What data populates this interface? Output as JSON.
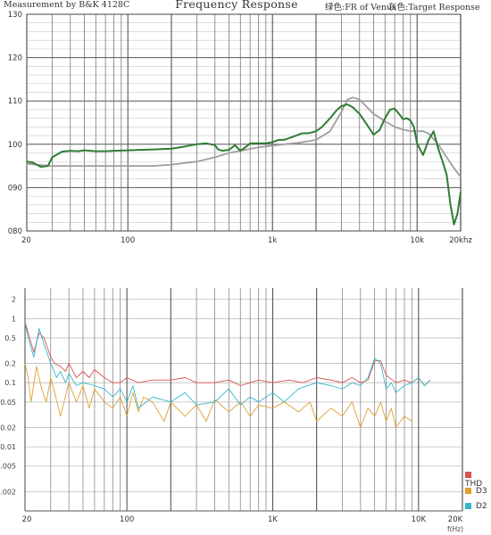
{
  "header": {
    "left": "Measurement by B&K 4128C",
    "title": "Frequency Response",
    "green_note": "绿色:FR of Venus",
    "gray_note": "灰色:Target Response"
  },
  "chart_data": [
    {
      "type": "line",
      "title": "Frequency Response",
      "x_scale": "log",
      "xlim": [
        20,
        20000
      ],
      "ylim": [
        80,
        130
      ],
      "grid": true,
      "yticks": [
        80,
        90,
        100,
        110,
        120,
        130
      ],
      "ytick_labels": [
        "080",
        "090",
        "100",
        "110",
        "120",
        "130"
      ],
      "xticks": [
        20,
        100,
        1000,
        10000,
        20000
      ],
      "xtick_labels": [
        "20",
        "100",
        "1k",
        "10k",
        "20khz"
      ],
      "colors": {
        "green": "#2e7d32",
        "gray": "#9e9e9e"
      },
      "series": [
        {
          "name": "FR of Venus",
          "color": "green",
          "x": [
            20,
            22,
            25,
            28,
            30,
            35,
            40,
            45,
            50,
            60,
            70,
            80,
            100,
            120,
            150,
            200,
            250,
            300,
            350,
            400,
            420,
            450,
            500,
            550,
            600,
            650,
            700,
            750,
            800,
            900,
            1000,
            1100,
            1200,
            1400,
            1600,
            1800,
            2000,
            2200,
            2500,
            2800,
            3000,
            3300,
            3600,
            4000,
            4500,
            5000,
            5500,
            6000,
            6500,
            7000,
            7500,
            8000,
            8500,
            9000,
            9500,
            10000,
            11000,
            12000,
            13000,
            14000,
            15000,
            16000,
            17000,
            18000,
            19000,
            20000
          ],
          "y": [
            96,
            95.8,
            94.8,
            95,
            97,
            98.3,
            98.5,
            98.4,
            98.6,
            98.4,
            98.4,
            98.5,
            98.6,
            98.7,
            98.8,
            99,
            99.5,
            100,
            100.2,
            99.8,
            98.8,
            98.5,
            98.7,
            99.8,
            98.5,
            99.3,
            100.2,
            100.2,
            100.2,
            100.2,
            100.5,
            101,
            101,
            101.8,
            102.5,
            102.6,
            103,
            104,
            106,
            108,
            108.8,
            109.2,
            108.5,
            107,
            104.5,
            102.2,
            103.3,
            106,
            108,
            108.2,
            107,
            105.8,
            106,
            105.5,
            104,
            100.2,
            97.5,
            101,
            103,
            99,
            96,
            93,
            86,
            81.5,
            84,
            89
          ]
        },
        {
          "name": "Target Response",
          "color": "gray",
          "x": [
            20,
            25,
            30,
            40,
            50,
            70,
            100,
            150,
            200,
            300,
            400,
            500,
            600,
            800,
            1000,
            1200,
            1500,
            2000,
            2500,
            3000,
            3300,
            3600,
            4000,
            5000,
            6000,
            7000,
            8000,
            9000,
            10000,
            11000,
            12000,
            14000,
            16000,
            18000,
            20000
          ],
          "y": [
            95.5,
            95.2,
            95,
            95,
            95,
            95,
            95,
            95,
            95.3,
            96,
            97,
            98,
            98.5,
            99.3,
            99.7,
            100,
            100.3,
            101,
            103,
            107.5,
            110.3,
            110.8,
            110.3,
            107,
            105.3,
            104,
            103.4,
            103,
            103,
            103,
            102.5,
            100,
            97,
            94.5,
            92.5
          ]
        }
      ]
    },
    {
      "type": "line",
      "x_scale": "log",
      "y_scale": "log",
      "xlim": [
        20,
        20000
      ],
      "ylim": [
        0.001,
        3
      ],
      "grid": true,
      "yticks": [
        2,
        1,
        0.5,
        0.2,
        0.1,
        0.05,
        0.02,
        0.01,
        0.005,
        0.002
      ],
      "ytick_labels": [
        "2",
        "1",
        "0.5",
        "0.2",
        "0.1",
        "0.05",
        "0.02",
        "0.01",
        "0.005",
        "0.002"
      ],
      "xticks": [
        20,
        100,
        1000,
        10000,
        20000
      ],
      "xtick_labels": [
        "20",
        "100",
        "1K",
        "10K",
        "20K"
      ],
      "xlabel": "f(Hz)",
      "legend_position": "bottom-right",
      "colors": {
        "THD": "#d9534f",
        "D3": "#e0a030",
        "D2": "#33b8c8"
      },
      "series": [
        {
          "name": "THD",
          "x": [
            20,
            21,
            23,
            25,
            27,
            30,
            32,
            35,
            38,
            40,
            45,
            50,
            55,
            60,
            70,
            80,
            90,
            100,
            120,
            150,
            200,
            250,
            300,
            400,
            500,
            600,
            700,
            800,
            1000,
            1300,
            1600,
            2000,
            2500,
            3000,
            3500,
            4000,
            4500,
            5000,
            5500,
            6000,
            7000,
            8000,
            9000,
            10000,
            11000,
            12000
          ],
          "y": [
            0.9,
            0.6,
            0.3,
            0.6,
            0.5,
            0.25,
            0.2,
            0.18,
            0.15,
            0.2,
            0.12,
            0.15,
            0.12,
            0.16,
            0.12,
            0.1,
            0.1,
            0.12,
            0.1,
            0.11,
            0.11,
            0.12,
            0.1,
            0.1,
            0.11,
            0.09,
            0.1,
            0.11,
            0.1,
            0.11,
            0.1,
            0.12,
            0.11,
            0.1,
            0.12,
            0.1,
            0.11,
            0.22,
            0.22,
            0.13,
            0.1,
            0.11,
            0.1,
            0.12,
            0.09,
            0.11
          ]
        },
        {
          "name": "D3",
          "x": [
            20,
            21,
            22,
            24,
            26,
            28,
            30,
            32,
            35,
            40,
            45,
            50,
            55,
            60,
            70,
            80,
            90,
            100,
            110,
            120,
            130,
            150,
            180,
            200,
            250,
            300,
            350,
            400,
            500,
            600,
            700,
            800,
            1000,
            1200,
            1500,
            1800,
            2000,
            2500,
            3000,
            3500,
            4000,
            4500,
            5000,
            5500,
            6000,
            6500,
            7000,
            8000,
            9000
          ],
          "y": [
            0.2,
            0.12,
            0.05,
            0.18,
            0.08,
            0.05,
            0.12,
            0.07,
            0.03,
            0.1,
            0.05,
            0.09,
            0.04,
            0.08,
            0.05,
            0.04,
            0.06,
            0.03,
            0.07,
            0.035,
            0.06,
            0.05,
            0.025,
            0.05,
            0.03,
            0.045,
            0.025,
            0.055,
            0.035,
            0.05,
            0.03,
            0.045,
            0.04,
            0.05,
            0.035,
            0.05,
            0.025,
            0.04,
            0.03,
            0.05,
            0.02,
            0.04,
            0.03,
            0.05,
            0.025,
            0.04,
            0.02,
            0.03,
            0.025
          ]
        },
        {
          "name": "D2",
          "x": [
            20,
            21,
            23,
            25,
            27,
            30,
            33,
            35,
            38,
            40,
            45,
            50,
            60,
            70,
            80,
            90,
            100,
            110,
            120,
            150,
            200,
            250,
            300,
            400,
            500,
            600,
            700,
            800,
            1000,
            1200,
            1500,
            2000,
            2500,
            3000,
            3500,
            4000,
            4500,
            5000,
            5500,
            6000,
            6500,
            7000,
            8000,
            9000,
            10000,
            11000,
            12000
          ],
          "y": [
            0.85,
            0.5,
            0.25,
            0.7,
            0.4,
            0.2,
            0.12,
            0.15,
            0.1,
            0.14,
            0.09,
            0.1,
            0.09,
            0.08,
            0.06,
            0.08,
            0.05,
            0.09,
            0.04,
            0.06,
            0.05,
            0.07,
            0.045,
            0.05,
            0.08,
            0.045,
            0.06,
            0.05,
            0.07,
            0.05,
            0.08,
            0.1,
            0.09,
            0.08,
            0.1,
            0.09,
            0.12,
            0.24,
            0.2,
            0.08,
            0.1,
            0.07,
            0.09,
            0.1,
            0.12,
            0.09,
            0.11
          ]
        }
      ]
    }
  ]
}
